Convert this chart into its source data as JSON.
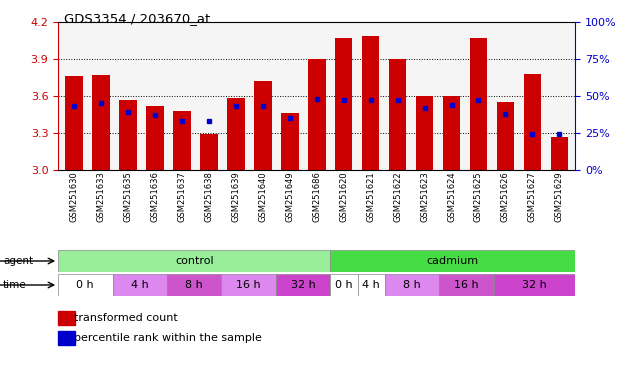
{
  "title": "GDS3354 / 203670_at",
  "samples": [
    "GSM251630",
    "GSM251633",
    "GSM251635",
    "GSM251636",
    "GSM251637",
    "GSM251638",
    "GSM251639",
    "GSM251640",
    "GSM251649",
    "GSM251686",
    "GSM251620",
    "GSM251621",
    "GSM251622",
    "GSM251623",
    "GSM251624",
    "GSM251625",
    "GSM251626",
    "GSM251627",
    "GSM251629"
  ],
  "bar_values": [
    3.76,
    3.77,
    3.57,
    3.52,
    3.48,
    3.29,
    3.58,
    3.72,
    3.46,
    3.9,
    4.07,
    4.09,
    3.9,
    3.6,
    3.6,
    4.07,
    3.55,
    3.78,
    3.27
  ],
  "percentile_values": [
    43,
    45,
    39,
    37,
    33,
    33,
    43,
    43,
    35,
    48,
    47,
    47,
    47,
    42,
    44,
    47,
    38,
    24,
    24
  ],
  "bar_color": "#cc0000",
  "percentile_color": "#0000cc",
  "ylim": [
    3.0,
    4.2
  ],
  "yticks": [
    3.0,
    3.3,
    3.6,
    3.9,
    4.2
  ],
  "right_yticks": [
    0,
    25,
    50,
    75,
    100
  ],
  "dotted_lines": [
    3.3,
    3.6,
    3.9
  ],
  "left_axis_color": "#cc0000",
  "right_axis_color": "#0000cc",
  "ctrl_color_light": "#99ee99",
  "ctrl_color": "#99ee99",
  "cad_color": "#44dd44",
  "time_segs": [
    [
      0,
      2,
      "0 h",
      "#ffffff"
    ],
    [
      2,
      4,
      "4 h",
      "#dd88ee"
    ],
    [
      4,
      6,
      "8 h",
      "#cc55cc"
    ],
    [
      6,
      8,
      "16 h",
      "#dd88ee"
    ],
    [
      8,
      10,
      "32 h",
      "#cc44cc"
    ],
    [
      10,
      11,
      "0 h",
      "#ffffff"
    ],
    [
      11,
      12,
      "4 h",
      "#ffffff"
    ],
    [
      12,
      14,
      "8 h",
      "#dd88ee"
    ],
    [
      14,
      16,
      "16 h",
      "#cc55cc"
    ],
    [
      16,
      19,
      "32 h",
      "#cc44cc"
    ]
  ]
}
